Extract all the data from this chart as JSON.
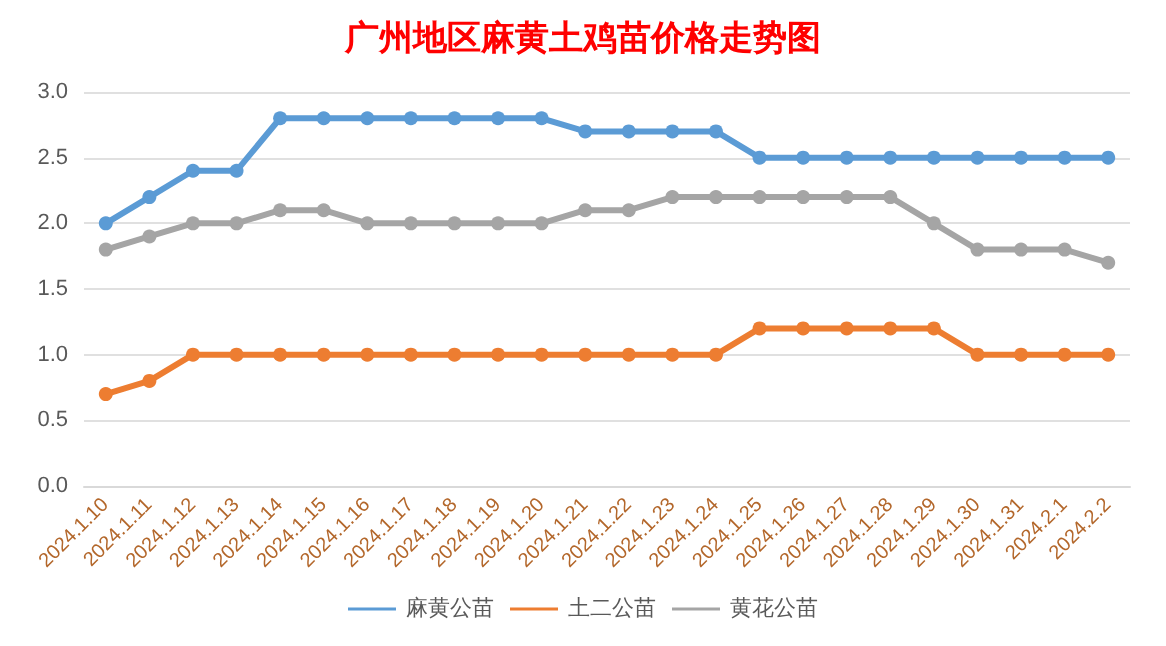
{
  "chart_data": {
    "type": "line",
    "title": "广州地区麻黄土鸡苗价格走势图",
    "categories": [
      "2024.1.10",
      "2024.1.11",
      "2024.1.12",
      "2024.1.13",
      "2024.1.14",
      "2024.1.15",
      "2024.1.16",
      "2024.1.17",
      "2024.1.18",
      "2024.1.19",
      "2024.1.20",
      "2024.1.21",
      "2024.1.22",
      "2024.1.23",
      "2024.1.24",
      "2024.1.25",
      "2024.1.26",
      "2024.1.27",
      "2024.1.28",
      "2024.1.29",
      "2024.1.30",
      "2024.1.31",
      "2024.2.1",
      "2024.2.2"
    ],
    "series": [
      {
        "name": "麻黄公苗",
        "color": "#5b9bd5",
        "values": [
          2.0,
          2.2,
          2.4,
          2.4,
          2.8,
          2.8,
          2.8,
          2.8,
          2.8,
          2.8,
          2.8,
          2.7,
          2.7,
          2.7,
          2.7,
          2.5,
          2.5,
          2.5,
          2.5,
          2.5,
          2.5,
          2.5,
          2.5,
          2.5
        ]
      },
      {
        "name": "土二公苗",
        "color": "#ed7d31",
        "values": [
          0.7,
          0.8,
          1.0,
          1.0,
          1.0,
          1.0,
          1.0,
          1.0,
          1.0,
          1.0,
          1.0,
          1.0,
          1.0,
          1.0,
          1.0,
          1.2,
          1.2,
          1.2,
          1.2,
          1.2,
          1.0,
          1.0,
          1.0,
          1.0
        ]
      },
      {
        "name": "黄花公苗",
        "color": "#a5a5a5",
        "values": [
          1.8,
          1.9,
          2.0,
          2.0,
          2.1,
          2.1,
          2.0,
          2.0,
          2.0,
          2.0,
          2.0,
          2.1,
          2.1,
          2.2,
          2.2,
          2.2,
          2.2,
          2.2,
          2.2,
          2.0,
          1.8,
          1.8,
          1.8,
          1.7
        ]
      }
    ],
    "ylim": [
      0,
      3.0
    ],
    "yticks": [
      {
        "value": 0,
        "label": "0.0"
      },
      {
        "value": 0.5,
        "label": "0.5"
      },
      {
        "value": 1,
        "label": "1.0"
      },
      {
        "value": 1.5,
        "label": "1.5"
      },
      {
        "value": 2,
        "label": "2.0"
      },
      {
        "value": 2.5,
        "label": "2.5"
      },
      {
        "value": 3,
        "label": "3.0"
      }
    ],
    "grid": "y",
    "legend": "bottom",
    "marker": "circle",
    "line_style": "solid"
  }
}
